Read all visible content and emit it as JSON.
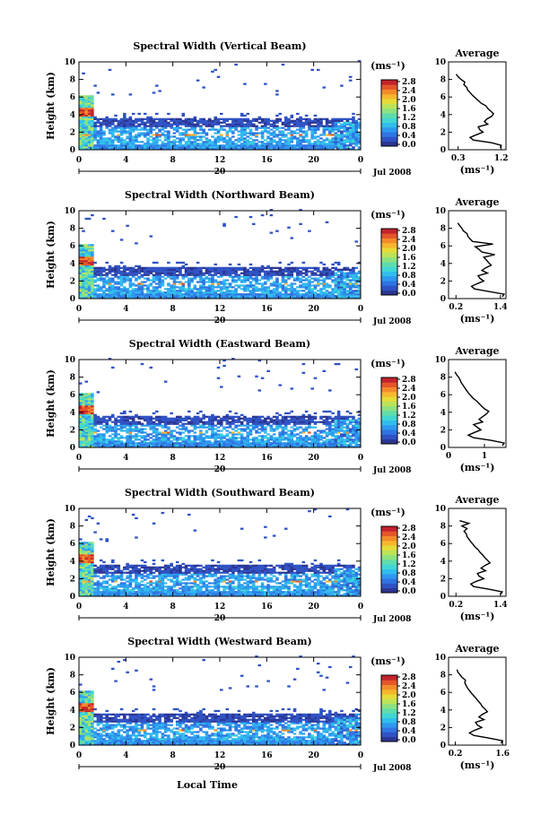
{
  "figure": {
    "x_label": "Local Time",
    "date_label": "Jul 2008",
    "day_label": "20",
    "colorbar_unit": "(ms⁻¹)",
    "avg_unit": "(ms⁻¹)",
    "avg_title": "Average",
    "y_label": "Height (km)"
  },
  "colormap": [
    "#2c3591",
    "#2f52c4",
    "#2f74e2",
    "#2e98ef",
    "#31bdee",
    "#42d6d4",
    "#5fdcab",
    "#8de27f",
    "#bde359",
    "#e6db38",
    "#f6b72f",
    "#f38b2a",
    "#e4572a",
    "#c3232c"
  ],
  "chart_data": [
    {
      "type": "heatmap",
      "title": "Spectral Width (Vertical Beam)",
      "x_ticks": [
        "0",
        "4",
        "8",
        "12",
        "16",
        "20",
        "0"
      ],
      "y_ticks": [
        "0",
        "2",
        "4",
        "6",
        "8",
        "10"
      ],
      "xlim": [
        0,
        24
      ],
      "ylim": [
        0,
        10
      ],
      "colorbar": {
        "ticks": [
          "0.0",
          "0.4",
          "0.8",
          "1.2",
          "1.6",
          "2.0",
          "2.4",
          "2.8"
        ],
        "range": [
          0,
          2.8
        ]
      },
      "average": {
        "x_ticks": [
          "0.3",
          "1.2"
        ],
        "xlim": [
          0.1,
          1.3
        ],
        "heights": [
          0.2,
          0.5,
          0.8,
          1.1,
          1.4,
          1.7,
          2.0,
          2.3,
          2.6,
          2.9,
          3.2,
          3.5,
          3.8,
          4.1,
          4.4,
          4.7,
          5.0,
          5.3,
          5.6,
          5.9,
          6.2,
          6.5,
          6.8,
          7.1,
          7.4,
          7.7,
          8.0,
          8.3,
          8.6
        ],
        "values": [
          1.18,
          1.2,
          1.0,
          0.62,
          0.55,
          0.68,
          0.82,
          0.75,
          0.72,
          0.92,
          0.85,
          0.9,
          1.0,
          1.04,
          0.98,
          0.92,
          0.88,
          0.78,
          0.72,
          0.66,
          0.6,
          0.55,
          0.5,
          0.48,
          0.42,
          0.44,
          0.36,
          0.3,
          0.26
        ]
      }
    },
    {
      "type": "heatmap",
      "title": "Spectral Width (Northward Beam)",
      "x_ticks": [
        "0",
        "4",
        "8",
        "12",
        "16",
        "20",
        "0"
      ],
      "y_ticks": [
        "0",
        "2",
        "4",
        "6",
        "8",
        "10"
      ],
      "xlim": [
        0,
        24
      ],
      "ylim": [
        0,
        10
      ],
      "colorbar": {
        "ticks": [
          "0.0",
          "0.4",
          "0.8",
          "1.2",
          "1.6",
          "2.0",
          "2.4",
          "2.8"
        ],
        "range": [
          0,
          2.8
        ]
      },
      "average": {
        "x_ticks": [
          "0.2",
          "1.4"
        ],
        "xlim": [
          0.0,
          1.55
        ],
        "heights": [
          0.2,
          0.5,
          0.8,
          1.1,
          1.4,
          1.7,
          2.0,
          2.3,
          2.6,
          2.9,
          3.2,
          3.5,
          3.8,
          4.1,
          4.4,
          4.7,
          5.0,
          5.3,
          5.6,
          5.9,
          6.2,
          6.5,
          6.8,
          7.1,
          7.4,
          7.7,
          8.0,
          8.3,
          8.6
        ],
        "values": [
          1.45,
          1.5,
          1.1,
          0.7,
          0.62,
          0.78,
          0.95,
          0.85,
          0.8,
          1.05,
          0.9,
          1.0,
          1.15,
          1.08,
          1.02,
          0.95,
          1.25,
          0.9,
          0.82,
          0.72,
          1.2,
          0.65,
          0.58,
          0.52,
          0.5,
          0.4,
          0.36,
          0.3,
          0.25
        ]
      }
    },
    {
      "type": "heatmap",
      "title": "Spectral Width (Eastward Beam)",
      "x_ticks": [
        "0",
        "4",
        "8",
        "12",
        "16",
        "20",
        "0"
      ],
      "y_ticks": [
        "0",
        "2",
        "4",
        "6",
        "8",
        "10"
      ],
      "xlim": [
        0,
        24
      ],
      "ylim": [
        0,
        10
      ],
      "colorbar": {
        "ticks": [
          "0.0",
          "0.4",
          "0.8",
          "1.2",
          "1.6",
          "2.0",
          "2.4",
          "2.8"
        ],
        "range": [
          0,
          2.8
        ]
      },
      "average": {
        "x_ticks": [
          "0",
          "1"
        ],
        "xlim": [
          0.0,
          1.6
        ],
        "heights": [
          0.2,
          0.5,
          0.8,
          1.1,
          1.4,
          1.7,
          2.0,
          2.3,
          2.6,
          2.9,
          3.2,
          3.5,
          3.8,
          4.1,
          4.4,
          4.7,
          5.0,
          5.3,
          5.6,
          5.9,
          6.2,
          6.5,
          6.8,
          7.1,
          7.4,
          7.7,
          8.0,
          8.3,
          8.6
        ],
        "values": [
          1.5,
          1.55,
          1.2,
          0.7,
          0.55,
          0.72,
          0.9,
          0.8,
          0.7,
          0.95,
          0.85,
          0.95,
          1.05,
          1.12,
          1.0,
          0.92,
          0.85,
          0.78,
          0.68,
          0.62,
          0.55,
          0.5,
          0.45,
          0.4,
          0.35,
          0.32,
          0.28,
          0.22,
          0.18
        ]
      }
    },
    {
      "type": "heatmap",
      "title": "Spectral Width (Southward Beam)",
      "x_ticks": [
        "0",
        "4",
        "8",
        "12",
        "16",
        "20",
        "0"
      ],
      "y_ticks": [
        "0",
        "2",
        "4",
        "6",
        "8",
        "10"
      ],
      "xlim": [
        0,
        24
      ],
      "ylim": [
        0,
        10
      ],
      "colorbar": {
        "ticks": [
          "0.0",
          "0.4",
          "0.8",
          "1.2",
          "1.6",
          "2.0",
          "2.4",
          "2.8"
        ],
        "range": [
          0,
          2.8
        ]
      },
      "average": {
        "x_ticks": [
          "0.2",
          "1.4"
        ],
        "xlim": [
          0.0,
          1.55
        ],
        "heights": [
          0.2,
          0.5,
          0.8,
          1.1,
          1.4,
          1.7,
          2.0,
          2.3,
          2.6,
          2.9,
          3.2,
          3.5,
          3.8,
          4.1,
          4.4,
          4.7,
          5.0,
          5.3,
          5.6,
          5.9,
          6.2,
          6.5,
          6.8,
          7.1,
          7.4,
          7.7,
          8.0,
          8.3,
          8.6
        ],
        "values": [
          1.4,
          1.45,
          1.1,
          0.68,
          0.6,
          0.75,
          0.95,
          0.82,
          0.78,
          1.0,
          0.88,
          0.98,
          1.12,
          1.05,
          0.98,
          0.92,
          0.85,
          0.8,
          0.72,
          0.66,
          0.6,
          0.55,
          0.5,
          0.48,
          0.42,
          0.5,
          0.36,
          0.55,
          0.3
        ]
      }
    },
    {
      "type": "heatmap",
      "title": "Spectral Width (Westward Beam)",
      "x_ticks": [
        "0",
        "4",
        "8",
        "12",
        "16",
        "20",
        "0"
      ],
      "y_ticks": [
        "0",
        "2",
        "4",
        "6",
        "8",
        "10"
      ],
      "xlim": [
        0,
        24
      ],
      "ylim": [
        0,
        10
      ],
      "colorbar": {
        "ticks": [
          "0.0",
          "0.4",
          "0.8",
          "1.2",
          "1.6",
          "2.0",
          "2.4",
          "2.8"
        ],
        "range": [
          0,
          2.8
        ]
      },
      "average": {
        "x_ticks": [
          "0.2",
          "1.6"
        ],
        "xlim": [
          0.0,
          1.7
        ],
        "heights": [
          0.2,
          0.5,
          0.8,
          1.1,
          1.4,
          1.7,
          2.0,
          2.3,
          2.6,
          2.9,
          3.2,
          3.5,
          3.8,
          4.1,
          4.4,
          4.7,
          5.0,
          5.3,
          5.6,
          5.9,
          6.2,
          6.5,
          6.8,
          7.1,
          7.4,
          7.7,
          8.0,
          8.3,
          8.6
        ],
        "values": [
          1.55,
          1.6,
          1.2,
          0.75,
          0.62,
          0.78,
          0.98,
          0.85,
          0.8,
          1.05,
          0.9,
          1.0,
          1.15,
          1.08,
          1.0,
          0.95,
          0.88,
          0.82,
          0.75,
          0.68,
          0.62,
          0.56,
          0.52,
          0.48,
          0.5,
          0.4,
          0.34,
          0.28,
          0.25
        ]
      }
    }
  ]
}
